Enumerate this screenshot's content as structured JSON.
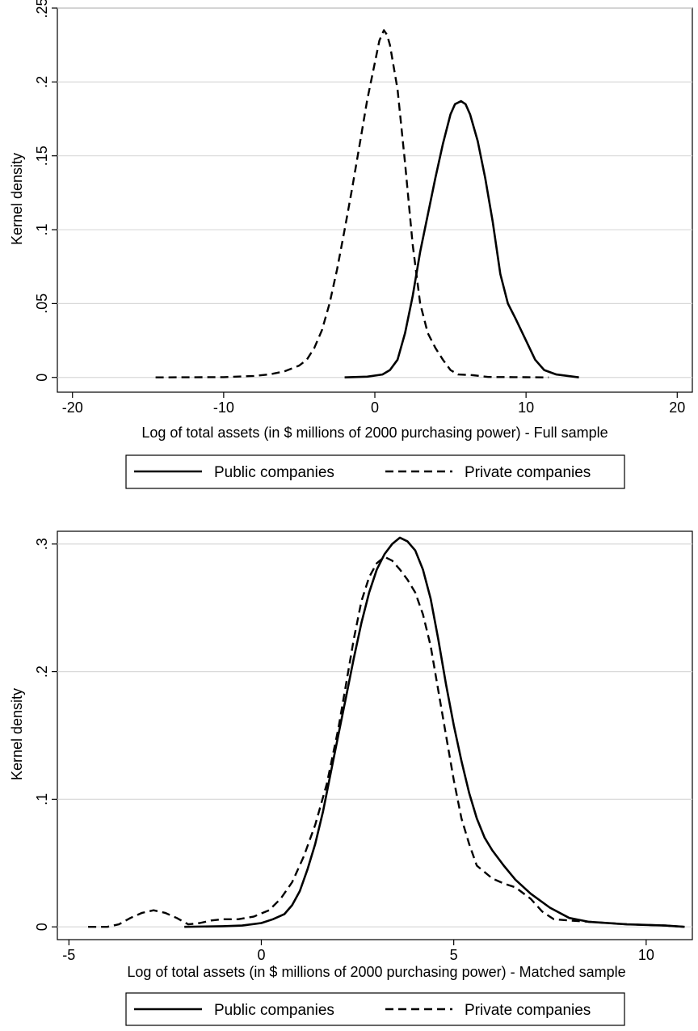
{
  "chart_data": [
    {
      "type": "line",
      "xlabel": "Log of total assets (in $ millions of 2000 purchasing power) - Full sample",
      "ylabel": "Kernel density",
      "xlim": [
        -21,
        21
      ],
      "ylim": [
        -0.01,
        0.25
      ],
      "xticks": [
        -20,
        -10,
        0,
        10,
        20
      ],
      "xtick_labels": [
        "-20",
        "-10",
        "0",
        "10",
        "20"
      ],
      "yticks": [
        0,
        0.05,
        0.1,
        0.15,
        0.2,
        0.25
      ],
      "ytick_labels": [
        "0",
        ".05",
        ".1",
        ".15",
        ".2",
        ".25"
      ],
      "grid": true,
      "legend_position": "bottom",
      "series": [
        {
          "name": "Public companies",
          "style": "solid",
          "points": [
            [
              -2,
              0
            ],
            [
              -0.5,
              0.0005
            ],
            [
              0.5,
              0.002
            ],
            [
              1,
              0.005
            ],
            [
              1.5,
              0.012
            ],
            [
              2,
              0.03
            ],
            [
              2.5,
              0.055
            ],
            [
              3,
              0.085
            ],
            [
              3.5,
              0.11
            ],
            [
              4,
              0.135
            ],
            [
              4.5,
              0.158
            ],
            [
              5,
              0.178
            ],
            [
              5.3,
              0.185
            ],
            [
              5.7,
              0.187
            ],
            [
              6,
              0.185
            ],
            [
              6.3,
              0.178
            ],
            [
              6.8,
              0.16
            ],
            [
              7.3,
              0.135
            ],
            [
              7.8,
              0.105
            ],
            [
              8.3,
              0.07
            ],
            [
              8.8,
              0.05
            ],
            [
              9.3,
              0.04
            ],
            [
              10,
              0.025
            ],
            [
              10.6,
              0.012
            ],
            [
              11.2,
              0.005
            ],
            [
              12,
              0.002
            ],
            [
              13.5,
              0
            ]
          ]
        },
        {
          "name": "Private companies",
          "style": "dashed",
          "points": [
            [
              -14.5,
              0
            ],
            [
              -10,
              0.0002
            ],
            [
              -8,
              0.001
            ],
            [
              -7,
              0.002
            ],
            [
              -6,
              0.004
            ],
            [
              -5,
              0.008
            ],
            [
              -4.5,
              0.012
            ],
            [
              -4,
              0.02
            ],
            [
              -3.5,
              0.032
            ],
            [
              -3,
              0.05
            ],
            [
              -2.5,
              0.073
            ],
            [
              -2,
              0.1
            ],
            [
              -1.5,
              0.128
            ],
            [
              -1,
              0.158
            ],
            [
              -0.5,
              0.188
            ],
            [
              0,
              0.213
            ],
            [
              0.3,
              0.228
            ],
            [
              0.6,
              0.235
            ],
            [
              0.8,
              0.232
            ],
            [
              1,
              0.225
            ],
            [
              1.5,
              0.195
            ],
            [
              2,
              0.145
            ],
            [
              2.5,
              0.09
            ],
            [
              3,
              0.05
            ],
            [
              3.5,
              0.03
            ],
            [
              4,
              0.02
            ],
            [
              4.5,
              0.012
            ],
            [
              5,
              0.005
            ],
            [
              5.5,
              0.002
            ],
            [
              6.5,
              0.0015
            ],
            [
              7.5,
              0.0003
            ],
            [
              10,
              0.0001
            ],
            [
              11.5,
              0
            ]
          ]
        }
      ],
      "legend": [
        "Public companies",
        "Private companies"
      ]
    },
    {
      "type": "line",
      "xlabel": "Log of total assets (in $ millions of 2000 purchasing power) - Matched sample",
      "ylabel": "Kernel density",
      "xlim": [
        -5.3,
        11.2
      ],
      "ylim": [
        -0.01,
        0.31
      ],
      "xticks": [
        -5,
        0,
        5,
        10
      ],
      "xtick_labels": [
        "-5",
        "0",
        "5",
        "10"
      ],
      "yticks": [
        0,
        0.1,
        0.2,
        0.3
      ],
      "ytick_labels": [
        "0",
        ".1",
        ".2",
        ".3"
      ],
      "grid": true,
      "legend_position": "bottom",
      "series": [
        {
          "name": "Public companies",
          "style": "solid",
          "points": [
            [
              -2,
              0
            ],
            [
              -1,
              0.0005
            ],
            [
              -0.5,
              0.001
            ],
            [
              0,
              0.003
            ],
            [
              0.3,
              0.006
            ],
            [
              0.6,
              0.01
            ],
            [
              0.8,
              0.017
            ],
            [
              1,
              0.028
            ],
            [
              1.2,
              0.045
            ],
            [
              1.4,
              0.065
            ],
            [
              1.6,
              0.09
            ],
            [
              1.8,
              0.12
            ],
            [
              2,
              0.15
            ],
            [
              2.2,
              0.18
            ],
            [
              2.4,
              0.21
            ],
            [
              2.6,
              0.238
            ],
            [
              2.8,
              0.262
            ],
            [
              3,
              0.28
            ],
            [
              3.2,
              0.292
            ],
            [
              3.4,
              0.3
            ],
            [
              3.6,
              0.305
            ],
            [
              3.8,
              0.302
            ],
            [
              4,
              0.295
            ],
            [
              4.2,
              0.28
            ],
            [
              4.4,
              0.257
            ],
            [
              4.6,
              0.225
            ],
            [
              4.8,
              0.19
            ],
            [
              5,
              0.158
            ],
            [
              5.2,
              0.13
            ],
            [
              5.4,
              0.105
            ],
            [
              5.6,
              0.085
            ],
            [
              5.8,
              0.07
            ],
            [
              6,
              0.06
            ],
            [
              6.3,
              0.048
            ],
            [
              6.6,
              0.037
            ],
            [
              7,
              0.026
            ],
            [
              7.5,
              0.015
            ],
            [
              8,
              0.007
            ],
            [
              8.5,
              0.004
            ],
            [
              9.5,
              0.002
            ],
            [
              10.5,
              0.001
            ],
            [
              11,
              0
            ]
          ]
        },
        {
          "name": "Private companies",
          "style": "dashed",
          "points": [
            [
              -4.5,
              0
            ],
            [
              -4,
              0
            ],
            [
              -3.7,
              0.002
            ],
            [
              -3.4,
              0.007
            ],
            [
              -3.1,
              0.011
            ],
            [
              -2.8,
              0.013
            ],
            [
              -2.5,
              0.011
            ],
            [
              -2.2,
              0.007
            ],
            [
              -1.9,
              0.002
            ],
            [
              -1.6,
              0.003
            ],
            [
              -1.3,
              0.005
            ],
            [
              -1,
              0.006
            ],
            [
              -0.6,
              0.006
            ],
            [
              -0.2,
              0.008
            ],
            [
              0.2,
              0.013
            ],
            [
              0.5,
              0.022
            ],
            [
              0.8,
              0.035
            ],
            [
              1.1,
              0.055
            ],
            [
              1.4,
              0.08
            ],
            [
              1.7,
              0.112
            ],
            [
              2,
              0.155
            ],
            [
              2.2,
              0.19
            ],
            [
              2.4,
              0.225
            ],
            [
              2.6,
              0.255
            ],
            [
              2.8,
              0.274
            ],
            [
              3,
              0.285
            ],
            [
              3.2,
              0.29
            ],
            [
              3.4,
              0.287
            ],
            [
              3.6,
              0.28
            ],
            [
              3.8,
              0.272
            ],
            [
              4,
              0.262
            ],
            [
              4.2,
              0.245
            ],
            [
              4.4,
              0.22
            ],
            [
              4.6,
              0.185
            ],
            [
              4.8,
              0.15
            ],
            [
              5,
              0.115
            ],
            [
              5.2,
              0.085
            ],
            [
              5.4,
              0.065
            ],
            [
              5.6,
              0.048
            ],
            [
              5.8,
              0.043
            ],
            [
              6,
              0.038
            ],
            [
              6.3,
              0.034
            ],
            [
              6.6,
              0.031
            ],
            [
              7,
              0.022
            ],
            [
              7.3,
              0.012
            ],
            [
              7.6,
              0.006
            ],
            [
              8,
              0.005
            ],
            [
              8.5,
              0.004
            ],
            [
              9.5,
              0.002
            ],
            [
              10.5,
              0.001
            ],
            [
              11,
              0
            ]
          ]
        }
      ],
      "legend": [
        "Public companies",
        "Private companies"
      ]
    }
  ]
}
